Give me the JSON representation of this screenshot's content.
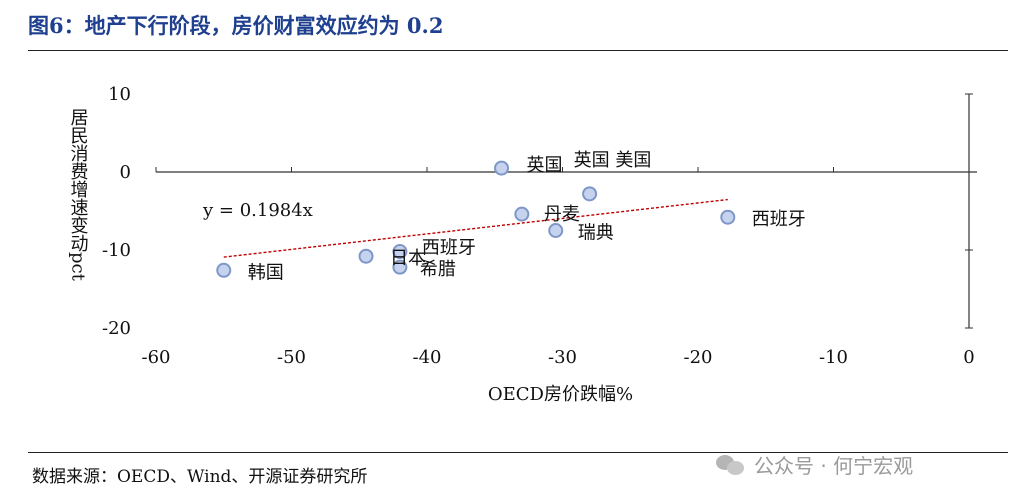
{
  "title": "图6：地产下行阶段，房价财富效应约为 0.2",
  "source": "数据来源：OECD、Wind、开源证券研究所",
  "watermark": "公众号 · 何宁宏观",
  "chart_data": {
    "type": "scatter",
    "xlabel": "OECD房价跌幅%",
    "ylabel": "居民消费增速变动pct",
    "xlim": [
      -60,
      0
    ],
    "ylim": [
      -20,
      10
    ],
    "xticks": [
      -60,
      -50,
      -40,
      -30,
      -20,
      -10,
      0
    ],
    "yticks": [
      10,
      0,
      -10,
      -20
    ],
    "points": [
      {
        "label": "韩国",
        "x": -55,
        "y": -12.6
      },
      {
        "label": "日本",
        "x": -44.5,
        "y": -10.8
      },
      {
        "label": "西班牙",
        "x": -42,
        "y": -10.2
      },
      {
        "label": "希腊",
        "x": -42,
        "y": -12.2
      },
      {
        "label": "英国",
        "x": -34.5,
        "y": 0.5
      },
      {
        "label": "丹麦",
        "x": -33,
        "y": -5.4
      },
      {
        "label": "瑞典",
        "x": -30.5,
        "y": -7.5
      },
      {
        "label": "英国 美国",
        "x": -28,
        "y": -2.8
      },
      {
        "label": "西班牙",
        "x": -17.8,
        "y": -5.8
      }
    ],
    "trendline": {
      "equation": "y = 0.1984x",
      "slope": 0.1984,
      "x_range": [
        -55,
        -17.8
      ],
      "color": "#c00000"
    },
    "marker_color": "#c5d3ee",
    "marker_edge": "#7f97c8"
  }
}
